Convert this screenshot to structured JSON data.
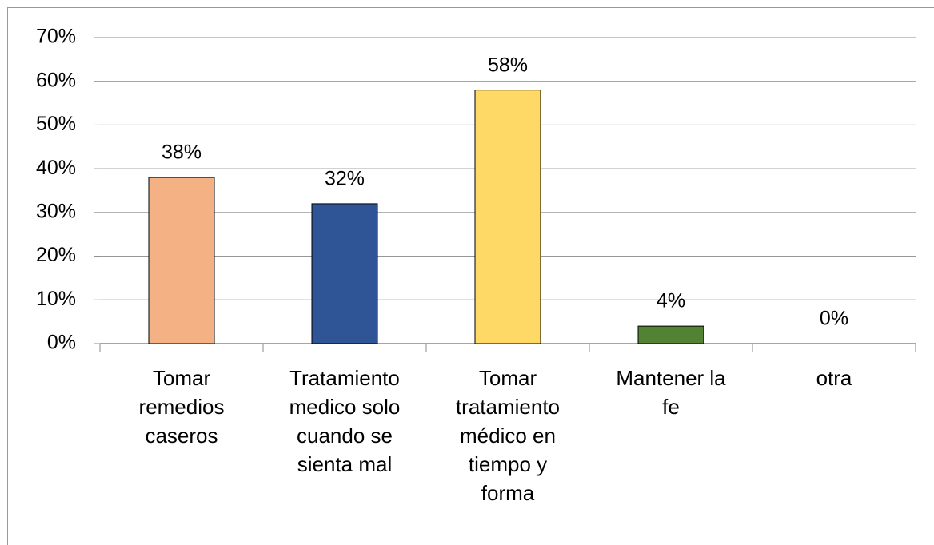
{
  "chart_data": {
    "type": "bar",
    "categories": [
      "Tomar remedios caseros",
      "Tratamiento medico solo cuando se sienta mal",
      "Tomar tratamiento médico en tiempo y forma",
      "Mantener la fe",
      "otra"
    ],
    "values": [
      38,
      32,
      58,
      4,
      0
    ],
    "value_labels": [
      "38%",
      "32%",
      "58%",
      "4%",
      "0%"
    ],
    "colors": [
      "#f4b183",
      "#2f5597",
      "#ffd966",
      "#548235",
      "#a5a5a5"
    ],
    "ylim": [
      0,
      70
    ],
    "yticks": [
      {
        "value": 0,
        "label": "0%"
      },
      {
        "value": 10,
        "label": "10%"
      },
      {
        "value": 20,
        "label": "20%"
      },
      {
        "value": 30,
        "label": "30%"
      },
      {
        "value": 40,
        "label": "40%"
      },
      {
        "value": 50,
        "label": "50%"
      },
      {
        "value": 60,
        "label": "60%"
      },
      {
        "value": 70,
        "label": "70%"
      }
    ],
    "grid": true
  }
}
